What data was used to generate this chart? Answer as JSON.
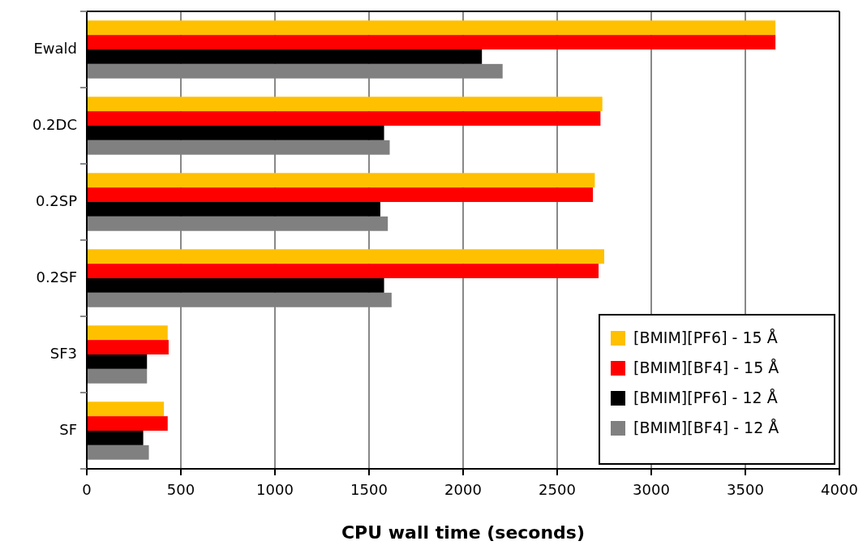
{
  "chart_data": {
    "type": "bar",
    "orientation": "horizontal",
    "xlabel": "CPU wall time (seconds)",
    "categories": [
      "Ewald",
      "0.2DC",
      "0.2SP",
      "0.2SF",
      "SF3",
      "SF"
    ],
    "series": [
      {
        "name": "[BMIM][PF6] - 15 Å",
        "color": "#ffc000",
        "values": [
          3660,
          2740,
          2700,
          2750,
          430,
          410
        ]
      },
      {
        "name": "[BMIM][BF4] - 15 Å",
        "color": "#ff0000",
        "values": [
          3660,
          2730,
          2690,
          2720,
          435,
          430
        ]
      },
      {
        "name": "[BMIM][PF6] - 12 Å",
        "color": "#000000",
        "values": [
          2100,
          1580,
          1560,
          1580,
          320,
          300
        ]
      },
      {
        "name": "[BMIM][BF4] - 12 Å",
        "color": "#808080",
        "values": [
          2210,
          1610,
          1600,
          1620,
          320,
          330
        ]
      }
    ],
    "xlim": [
      0,
      4000
    ],
    "xticks": [
      0,
      500,
      1000,
      1500,
      2000,
      2500,
      3000,
      3500,
      4000
    ],
    "grid": "x",
    "legend": "bottom right"
  }
}
